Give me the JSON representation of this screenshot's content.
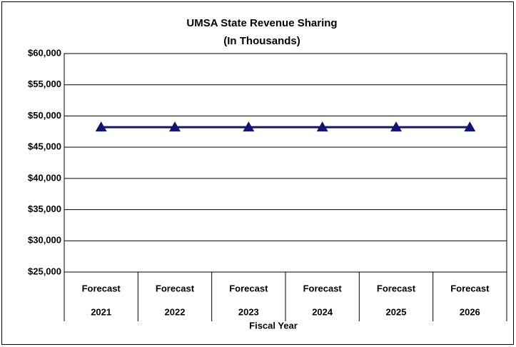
{
  "chart_data": {
    "type": "line",
    "title": "UMSA State Revenue Sharing",
    "subtitle": "(In Thousands)",
    "x_label": "Fiscal Year",
    "categories": [
      [
        "Forecast",
        "2021"
      ],
      [
        "Forecast",
        "2022"
      ],
      [
        "Forecast",
        "2023"
      ],
      [
        "Forecast",
        "2024"
      ],
      [
        "Forecast",
        "2025"
      ],
      [
        "Forecast",
        "2026"
      ]
    ],
    "series": [
      {
        "name": "UMSA State Revenue Sharing",
        "color": "#141478",
        "values": [
          48200,
          48200,
          48200,
          48200,
          48200,
          48200
        ]
      }
    ],
    "ylim": [
      25000,
      60000
    ],
    "yticks": [
      {
        "value": 25000,
        "label": "$25,000"
      },
      {
        "value": 30000,
        "label": "$30,000"
      },
      {
        "value": 35000,
        "label": "$35,000"
      },
      {
        "value": 40000,
        "label": "$40,000"
      },
      {
        "value": 45000,
        "label": "$45,000"
      },
      {
        "value": 50000,
        "label": "$50,000"
      },
      {
        "value": 55000,
        "label": "$55,000"
      },
      {
        "value": 60000,
        "label": "$60,000"
      }
    ],
    "grid": true
  }
}
